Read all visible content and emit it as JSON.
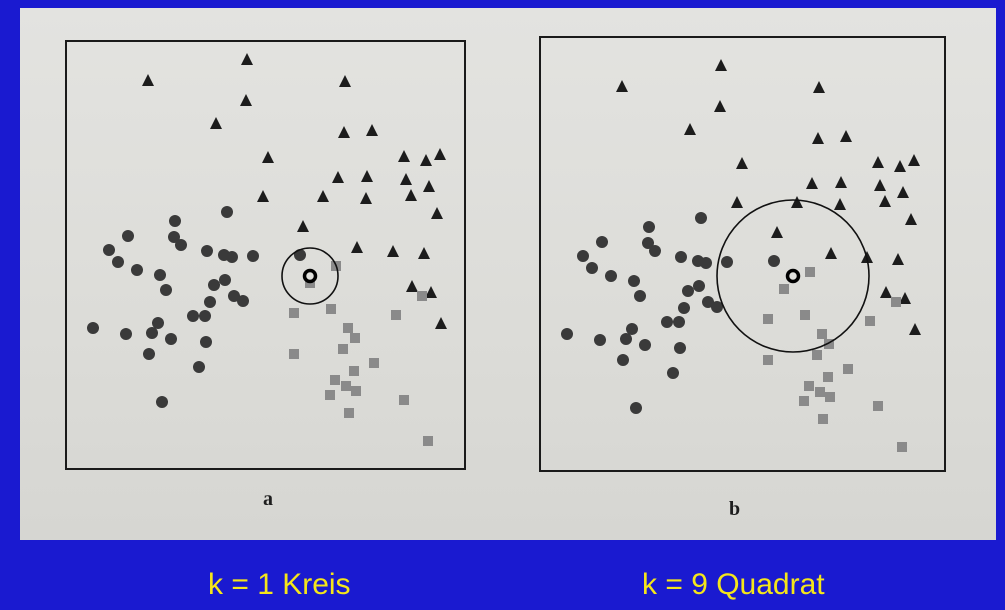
{
  "panels": [
    {
      "label": "a",
      "k": 1
    },
    {
      "label": "b",
      "k": 9
    }
  ],
  "captions": {
    "left": "k = 1 Kreis",
    "right": "k = 9 Quadrat"
  },
  "colors": {
    "background": "#1a1ad0",
    "caption": "#f5e61a",
    "paper": "#dcdcd8",
    "triangle": "#1c1c1c",
    "circle": "#3a3a3a",
    "square": "#8a8a8a"
  },
  "legend_icons": [
    "triangle-marker",
    "circle-marker",
    "square-marker",
    "query-point-ring"
  ]
}
